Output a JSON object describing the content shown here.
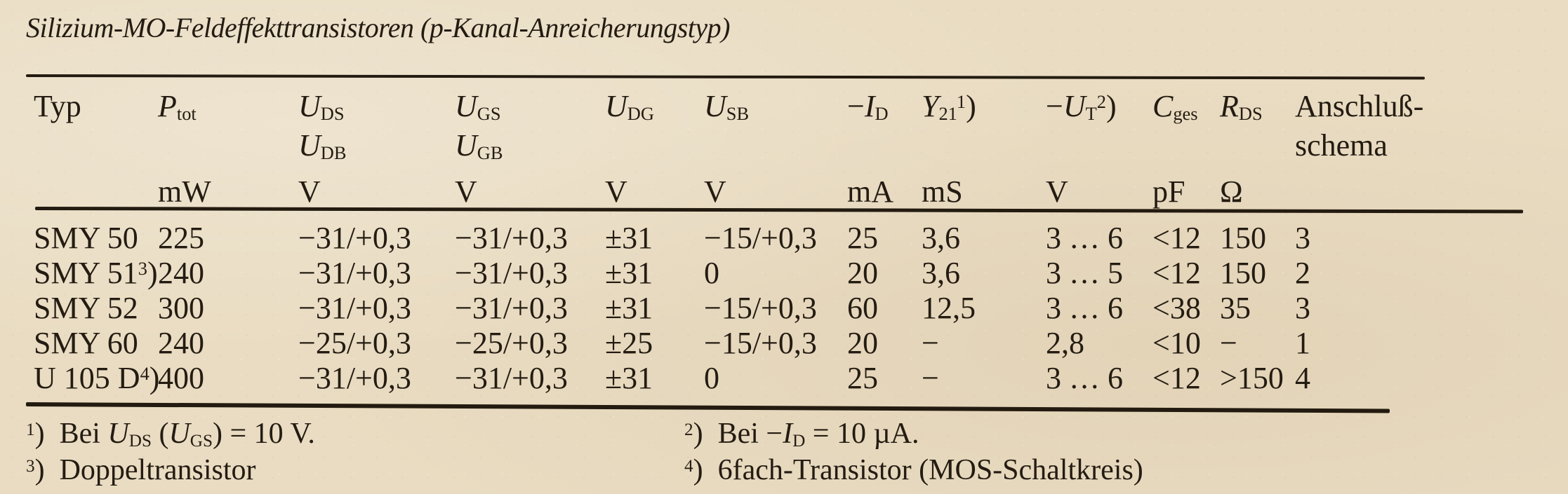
{
  "colors": {
    "paper": "#e9dcc2",
    "ink": "#241c12"
  },
  "title": "Silizium-MO-Feldeffekttransistoren (p-Kanal-Anreicherungstyp)",
  "table": {
    "header": {
      "c1": {
        "line1": "Typ",
        "unit": ""
      },
      "c2": {
        "line1": "<i>P</i><sub>tot</sub>",
        "unit": "mW"
      },
      "c3": {
        "line1": "<i>U</i><sub>DS</sub>",
        "line2": "<i>U</i><sub>DB</sub>",
        "unit": "V"
      },
      "c4": {
        "line1": "<i>U</i><sub>GS</sub>",
        "line2": "<i>U</i><sub>GB</sub>",
        "unit": "V"
      },
      "c5": {
        "line1": "<i>U</i><sub>DG</sub>",
        "unit": "V"
      },
      "c6": {
        "line1": "<i>U</i><sub>SB</sub>",
        "unit": "V"
      },
      "c7": {
        "line1": "−<i>I</i><sub>D</sub>",
        "unit": "mA"
      },
      "c8": {
        "line1": "<i>Y</i><sub>21</sub><sup>1</sup>)",
        "unit": "mS"
      },
      "c9": {
        "line1": "−<i>U</i><sub>T</sub><sup>2</sup>)",
        "unit": "V"
      },
      "c10": {
        "line1": "<i>C</i><sub>ges</sub>",
        "unit": "pF"
      },
      "c11": {
        "line1": "<i>R</i><sub>DS</sub>",
        "unit": "Ω"
      },
      "c12": {
        "line1": "Anschluß-",
        "line2": "schema",
        "unit": ""
      }
    },
    "rows": [
      {
        "cells": [
          "SMY 50",
          "225",
          "−31/+0,3",
          "−31/+0,3",
          "±31",
          "−15/+0,3",
          "25",
          "3,6",
          "3 … 6",
          "<12",
          "150",
          "3"
        ]
      },
      {
        "cells": [
          "SMY 51<sup>3</sup>)",
          "240",
          "−31/+0,3",
          "−31/+0,3",
          "±31",
          "0",
          "20",
          "3,6",
          "3 … 5",
          "<12",
          "150",
          "2"
        ]
      },
      {
        "cells": [
          "SMY 52",
          "300",
          "−31/+0,3",
          "−31/+0,3",
          "±31",
          "−15/+0,3",
          "60",
          "12,5",
          "3 … 6",
          "<38",
          "35",
          "3"
        ]
      },
      {
        "cells": [
          "SMY 60",
          "240",
          "−25/+0,3",
          "−25/+0,3",
          "±25",
          "−15/+0,3",
          "20",
          "−",
          "2,8",
          "<10",
          "−",
          "1"
        ]
      },
      {
        "cells": [
          "U 105 D<sup>4</sup>)",
          "400",
          "−31/+0,3",
          "−31/+0,3",
          "±31",
          "0",
          "25",
          "−",
          "3 … 6",
          "<12",
          ">150",
          "4"
        ]
      }
    ]
  },
  "footnotes": {
    "fn1": "<sup>1</sup>) Bei <i>U</i><sub>DS</sub> (<i>U</i><sub>GS</sub>) = 10 V.",
    "fn2": "<sup>2</sup>) Bei −<i>I</i><sub>D</sub> = 10 µA.",
    "fn3": "<sup>3</sup>) Doppeltransistor",
    "fn4": "<sup>4</sup>) 6fach-Transistor (MOS-Schaltkreis)"
  }
}
